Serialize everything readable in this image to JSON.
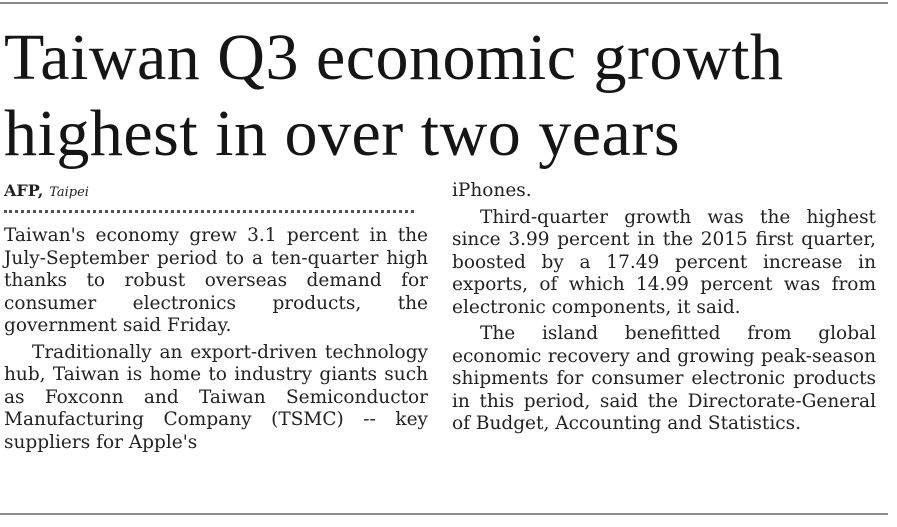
{
  "article": {
    "headline": "Taiwan Q3 economic growth highest in over two years",
    "byline": {
      "agency": "AFP,",
      "place": "Taipei"
    },
    "left_paragraphs": [
      "Taiwan's economy grew 3.1 percent in the July-September period to a ten-quarter high thanks to robust overseas demand for consumer electronics products, the government said Friday.",
      "Traditionally an export-driven technology hub, Taiwan is home to industry giants such as Foxconn and Taiwan Semiconductor Manufacturing Company (TSMC) -- key suppliers for Apple's"
    ],
    "right_paragraphs": [
      "iPhones.",
      "Third-quarter growth was the highest since 3.99 percent in the 2015 first quarter, boosted by a 17.49 percent increase in exports, of which 14.99 percent was from electronic components, it said.",
      "The island benefitted from global economic recovery and growing peak-season shipments for consumer electronic products in this period, said the Directorate-General of Budget, Accounting and Statistics."
    ]
  }
}
